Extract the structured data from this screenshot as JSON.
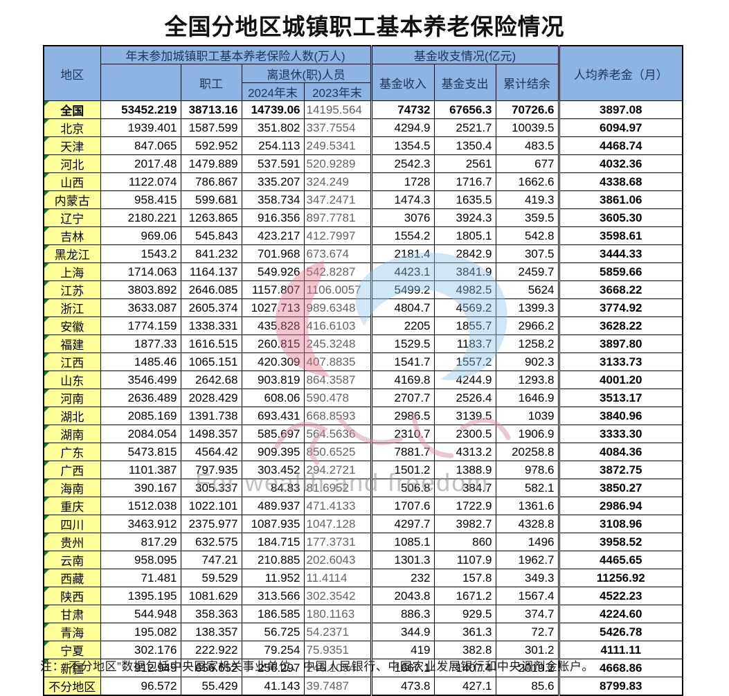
{
  "title": "全国分地区城镇职工基本养老保险情况",
  "table": {
    "header": {
      "region": "地区",
      "group_participants": "年末参加城镇职工基本养老保险人数(万人)",
      "col_total": "",
      "col_workers": "职工",
      "group_retirees": "离退休(职)人员",
      "col_2024": "2024年末",
      "col_2023": "2023年末",
      "group_fund": "基金收支情况(亿元)",
      "col_income": "基金收入",
      "col_expense": "基金支出",
      "col_balance": "累计结余",
      "col_pension": "人均养老金（月）"
    },
    "rows": [
      {
        "region": "全国",
        "marker": true,
        "cells": [
          "53452.219",
          "38713.16",
          "14739.06",
          "14195.564",
          "74732",
          "67656.3",
          "70726.6",
          "3897.08"
        ]
      },
      {
        "region": "北京",
        "marker": true,
        "cells": [
          "1939.401",
          "1587.599",
          "351.802",
          "337.7554",
          "4294.9",
          "2521.7",
          "10039.5",
          "6094.97"
        ]
      },
      {
        "region": "天津",
        "marker": true,
        "cells": [
          "847.065",
          "592.952",
          "254.113",
          "249.5341",
          "1354.5",
          "1350.4",
          "483.5",
          "4468.74"
        ]
      },
      {
        "region": "河北",
        "marker": true,
        "cells": [
          "2017.48",
          "1479.889",
          "537.591",
          "520.9289",
          "2542.3",
          "2561",
          "677",
          "4032.36"
        ]
      },
      {
        "region": "山西",
        "marker": true,
        "cells": [
          "1122.074",
          "786.867",
          "335.207",
          "324.249",
          "1728",
          "1716.7",
          "1662.6",
          "4338.68"
        ]
      },
      {
        "region": "内蒙古",
        "marker": true,
        "cells": [
          "958.415",
          "599.681",
          "358.734",
          "347.2471",
          "1474.3",
          "1635.5",
          "419.3",
          "3861.06"
        ]
      },
      {
        "region": "辽宁",
        "marker": true,
        "cells": [
          "2180.221",
          "1263.865",
          "916.356",
          "897.7781",
          "3076",
          "3924.3",
          "359.5",
          "3605.30"
        ]
      },
      {
        "region": "吉林",
        "marker": true,
        "cells": [
          "969.06",
          "545.843",
          "423.217",
          "412.7997",
          "1554.2",
          "1805.1",
          "542.8",
          "3598.61"
        ]
      },
      {
        "region": "黑龙江",
        "marker": true,
        "cells": [
          "1543.2",
          "841.232",
          "701.968",
          "673.674",
          "2181.4",
          "2842.9",
          "307.5",
          "3444.33"
        ]
      },
      {
        "region": "上海",
        "marker": true,
        "cells": [
          "1714.063",
          "1164.137",
          "549.926",
          "542.8287",
          "4423.1",
          "3841.9",
          "2459.7",
          "5859.66"
        ]
      },
      {
        "region": "江苏",
        "marker": true,
        "cells": [
          "3803.892",
          "2646.085",
          "1157.807",
          "1106.0057",
          "5499.2",
          "4982.5",
          "5624",
          "3668.22"
        ]
      },
      {
        "region": "浙江",
        "marker": true,
        "cells": [
          "3633.087",
          "2605.374",
          "1027.713",
          "989.6348",
          "4804.7",
          "4569.2",
          "1399.3",
          "3774.92"
        ]
      },
      {
        "region": "安徽",
        "marker": true,
        "cells": [
          "1774.159",
          "1338.331",
          "435.828",
          "416.6103",
          "2205",
          "1855.7",
          "2966.2",
          "3628.22"
        ]
      },
      {
        "region": "福建",
        "marker": true,
        "cells": [
          "1877.33",
          "1616.515",
          "260.815",
          "245.3248",
          "1529.5",
          "1183.7",
          "1258.2",
          "3897.80"
        ]
      },
      {
        "region": "江西",
        "marker": true,
        "cells": [
          "1485.46",
          "1065.151",
          "420.309",
          "407.8835",
          "1541.7",
          "1557.2",
          "902.3",
          "3133.73"
        ]
      },
      {
        "region": "山东",
        "marker": true,
        "cells": [
          "3546.499",
          "2642.68",
          "903.819",
          "864.3587",
          "4169.8",
          "4244.9",
          "1293.8",
          "4001.20"
        ]
      },
      {
        "region": "河南",
        "marker": true,
        "cells": [
          "2636.489",
          "2028.429",
          "608.06",
          "590.478",
          "2707.7",
          "2526.4",
          "1646.9",
          "3513.17"
        ]
      },
      {
        "region": "湖北",
        "marker": true,
        "cells": [
          "2085.169",
          "1391.738",
          "693.431",
          "668.8593",
          "2986.5",
          "3139.5",
          "1039",
          "3840.96"
        ]
      },
      {
        "region": "湖南",
        "marker": true,
        "cells": [
          "2084.054",
          "1498.357",
          "585.697",
          "564.5636",
          "2310.7",
          "2300.5",
          "1906.9",
          "3333.30"
        ]
      },
      {
        "region": "广东",
        "marker": true,
        "cells": [
          "5473.815",
          "4564.42",
          "909.395",
          "850.6525",
          "7881.7",
          "4313.2",
          "20258.8",
          "4084.36"
        ]
      },
      {
        "region": "广西",
        "marker": true,
        "cells": [
          "1101.387",
          "797.935",
          "303.452",
          "294.2721",
          "1501.2",
          "1388.9",
          "978.6",
          "3872.75"
        ]
      },
      {
        "region": "海南",
        "marker": true,
        "cells": [
          "390.167",
          "305.337",
          "84.83",
          "81.6952",
          "506.8",
          "384.7",
          "582.1",
          "3850.27"
        ]
      },
      {
        "region": "重庆",
        "marker": true,
        "cells": [
          "1512.038",
          "1022.101",
          "489.937",
          "471.4133",
          "1707.6",
          "1722.9",
          "1361.6",
          "2986.94"
        ]
      },
      {
        "region": "四川",
        "marker": true,
        "cells": [
          "3463.912",
          "2375.977",
          "1087.935",
          "1047.128",
          "4297.7",
          "3982.7",
          "4328.8",
          "3108.96"
        ]
      },
      {
        "region": "贵州",
        "marker": true,
        "cells": [
          "817.29",
          "632.575",
          "184.715",
          "177.3731",
          "1085.1",
          "860",
          "1496",
          "3958.52"
        ]
      },
      {
        "region": "云南",
        "marker": true,
        "cells": [
          "958.095",
          "747.21",
          "210.885",
          "202.6043",
          "1301.3",
          "1107.9",
          "1962.7",
          "4465.65"
        ]
      },
      {
        "region": "西藏",
        "marker": true,
        "cells": [
          "71.481",
          "59.529",
          "11.952",
          "11.4114",
          "232",
          "157.8",
          "349.3",
          "11256.92"
        ]
      },
      {
        "region": "陕西",
        "marker": true,
        "cells": [
          "1395.195",
          "1081.629",
          "313.566",
          "302.3542",
          "2043.8",
          "1671.2",
          "1567.4",
          "4522.23"
        ]
      },
      {
        "region": "甘肃",
        "marker": true,
        "cells": [
          "544.948",
          "358.363",
          "186.585",
          "180.1163",
          "886.3",
          "929.5",
          "374.7",
          "4224.60"
        ]
      },
      {
        "region": "青海",
        "marker": true,
        "cells": [
          "195.082",
          "138.357",
          "56.725",
          "54.2371",
          "344.9",
          "361.3",
          "72.7",
          "5426.78"
        ]
      },
      {
        "region": "宁夏",
        "marker": true,
        "cells": [
          "302.176",
          "222.922",
          "79.254",
          "75.9351",
          "419",
          "382.8",
          "301.2",
          "4111.11"
        ]
      },
      {
        "region": "新疆",
        "marker": true,
        "cells": [
          "912.949",
          "656.652",
          "256.297",
          "246.1094",
          "1667.1",
          "1407.4",
          "2019.2",
          "4668.86"
        ]
      },
      {
        "region": "不分地区",
        "marker": false,
        "cells": [
          "96.572",
          "55.429",
          "41.143",
          "39.7487",
          "473.8",
          "427.1",
          "85.6",
          "8799.83"
        ]
      }
    ]
  },
  "note": "注：“不分地区”数据包括中央国家机关事业单位、中国人民银行、中国农业发展银行和中央调剂金账户。",
  "watermark": {
    "text": "For wealth and freedom"
  },
  "colors": {
    "header_fill": "#8DB4E2",
    "header_text": "#1f3556",
    "region_fill": "#FFFF99",
    "marker_green": "#1e7b34",
    "prev_year_text": "#636363",
    "watermark_pink": "#df7492",
    "watermark_blue": "#8fc3e4",
    "watermark_gray": "#8f8f8f"
  }
}
